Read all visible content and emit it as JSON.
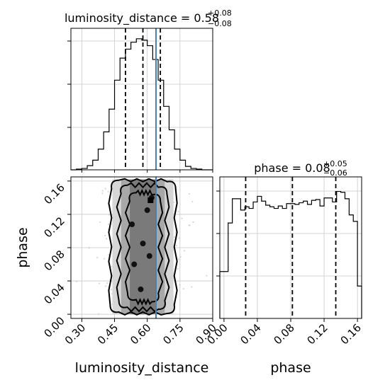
{
  "chart_data": [
    {
      "type": "histogram",
      "panel": "luminosity_distance marginal",
      "title": {
        "main": "luminosity_distance = 0.58",
        "sup": "+0.08",
        "sub": "−0.08"
      },
      "xlim": [
        0.25,
        0.9
      ],
      "quantiles": [
        0.5,
        0.58,
        0.66
      ],
      "truth": 0.64,
      "bins": [
        0.25,
        0.275,
        0.3,
        0.325,
        0.35,
        0.375,
        0.4,
        0.425,
        0.45,
        0.475,
        0.5,
        0.525,
        0.55,
        0.575,
        0.6,
        0.625,
        0.65,
        0.675,
        0.7,
        0.725,
        0.75,
        0.775,
        0.8,
        0.825,
        0.85,
        0.875,
        0.9
      ],
      "counts": [
        0,
        1,
        2,
        6,
        14,
        30,
        55,
        88,
        130,
        162,
        175,
        185,
        190,
        188,
        180,
        160,
        130,
        92,
        58,
        30,
        14,
        5,
        2,
        1,
        0,
        0
      ],
      "grid": true
    },
    {
      "type": "histogram",
      "panel": "phase marginal",
      "title": {
        "main": "phase = 0.08",
        "sup": "+0.05",
        "sub": "−0.06"
      },
      "xlim": [
        -0.005,
        0.165
      ],
      "xticks": [
        "0.00",
        "0.04",
        "0.08",
        "0.12",
        "0.16"
      ],
      "quantiles": [
        0.026,
        0.082,
        0.134
      ],
      "bins": [
        -0.005,
        0.0,
        0.005,
        0.01,
        0.015,
        0.02,
        0.025,
        0.03,
        0.035,
        0.04,
        0.045,
        0.05,
        0.055,
        0.06,
        0.065,
        0.07,
        0.075,
        0.08,
        0.085,
        0.09,
        0.095,
        0.1,
        0.105,
        0.11,
        0.115,
        0.12,
        0.125,
        0.13,
        0.135,
        0.14,
        0.145,
        0.15,
        0.155,
        0.16,
        0.165
      ],
      "counts": [
        58,
        58,
        118,
        148,
        148,
        134,
        138,
        136,
        144,
        151,
        145,
        140,
        138,
        136,
        139,
        136,
        142,
        142,
        141,
        143,
        145,
        141,
        146,
        147,
        139,
        149,
        149,
        144,
        157,
        156,
        148,
        128,
        120,
        40
      ],
      "ylim": [
        0,
        175
      ],
      "grid": true
    },
    {
      "type": "scatter_contour",
      "panel": "2D joint",
      "xlabel": "luminosity_distance",
      "ylabel": "phase",
      "xlim": [
        0.25,
        0.9
      ],
      "ylim": [
        -0.005,
        0.165
      ],
      "xticks": [
        "0.30",
        "0.45",
        "0.60",
        "0.75",
        "0.90"
      ],
      "yticks": [
        "0.00",
        "0.04",
        "0.08",
        "0.12",
        "0.16"
      ],
      "truth_x": 0.64,
      "contour_levels": [
        "outer",
        "middle",
        "inner"
      ],
      "grid": true
    }
  ],
  "colors": {
    "truth": "#4a7fb0",
    "hist": "#000000",
    "grid": "#c8c8c8",
    "scatter": "#bdbdbd"
  }
}
